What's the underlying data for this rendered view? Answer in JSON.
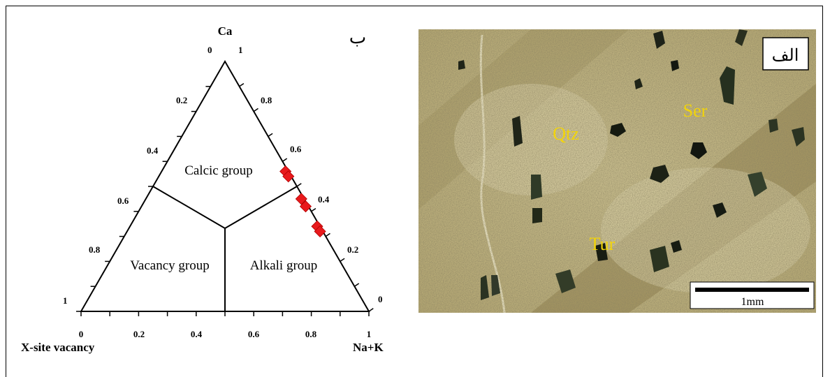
{
  "ternary": {
    "panel_label": "ب",
    "apex_top": "Ca",
    "apex_left": "X-site vacancy",
    "apex_right": "Na+K",
    "left_edge_ticks": [
      "0.2",
      "0.4",
      "0.6",
      "0.8",
      "1"
    ],
    "top_tick_left": "0",
    "top_tick_right": "1",
    "right_edge_ticks": [
      "0.8",
      "0.6",
      "0.4",
      "0.2",
      "0"
    ],
    "bottom_ticks": [
      "0",
      "0.2",
      "0.4",
      "0.6",
      "0.8",
      "1"
    ],
    "fields": {
      "calcic": "Calcic group",
      "vacancy": "Vacancy group",
      "alkali": "Alkali group"
    },
    "marker_color": "#e8191c",
    "samples_ca": [
      0.56,
      0.54,
      0.45,
      0.42,
      0.34,
      0.32
    ]
  },
  "photo": {
    "panel_label": "الف",
    "minerals": [
      "Qtz",
      "Ser",
      "Tur"
    ],
    "mineral_label_color": "#f2d40a",
    "scale_bar_label": "1mm"
  }
}
